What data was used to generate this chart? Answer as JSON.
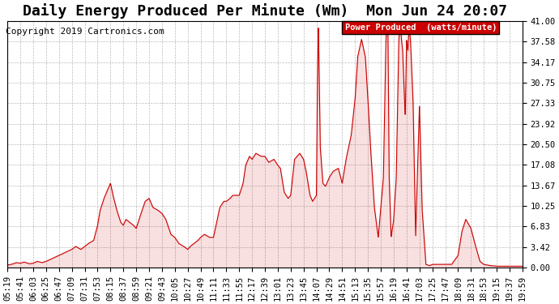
{
  "title": "Daily Energy Produced Per Minute (Wm)  Mon Jun 24 20:07",
  "copyright": "Copyright 2019 Cartronics.com",
  "legend_label": "Power Produced  (watts/minute)",
  "legend_bg": "#cc0000",
  "legend_fg": "#ffffff",
  "line_color": "#cc0000",
  "bg_color": "#ffffff",
  "grid_color": "#aaaaaa",
  "ymin": 0.0,
  "ymax": 41.0,
  "yticks": [
    0.0,
    3.42,
    6.83,
    10.25,
    13.67,
    17.08,
    20.5,
    23.92,
    27.33,
    30.75,
    34.17,
    37.58,
    41.0
  ],
  "xtick_labels": [
    "05:19",
    "05:41",
    "06:03",
    "06:25",
    "06:47",
    "07:09",
    "07:31",
    "07:53",
    "08:15",
    "08:37",
    "08:59",
    "09:21",
    "09:43",
    "10:05",
    "10:27",
    "10:49",
    "11:11",
    "11:33",
    "11:55",
    "12:17",
    "12:39",
    "13:01",
    "13:23",
    "13:45",
    "14:07",
    "14:29",
    "14:51",
    "15:13",
    "15:35",
    "15:57",
    "16:19",
    "16:41",
    "17:03",
    "17:25",
    "17:47",
    "18:09",
    "18:31",
    "18:53",
    "19:15",
    "19:37",
    "19:59"
  ],
  "title_fontsize": 13,
  "tick_fontsize": 7.5,
  "copyright_fontsize": 8
}
